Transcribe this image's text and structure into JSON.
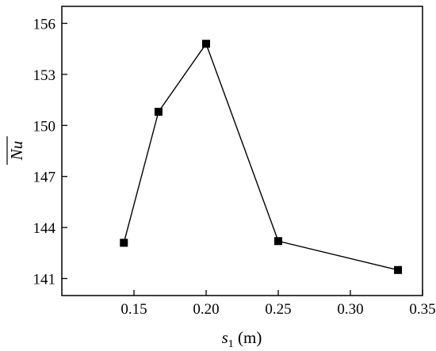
{
  "chart_data": {
    "type": "line",
    "title": "",
    "xlabel": {
      "var": "s",
      "sub": "1",
      "unit": " (m)"
    },
    "ylabel": "Nu",
    "ylabel_overline": true,
    "xlim": [
      0.1,
      0.35
    ],
    "ylim": [
      140,
      157
    ],
    "xticks": [
      0.15,
      0.2,
      0.25,
      0.3,
      0.35
    ],
    "xtick_labels": [
      "0.15",
      "0.20",
      "0.25",
      "0.30",
      "0.35"
    ],
    "yticks": [
      141,
      144,
      147,
      150,
      153,
      156
    ],
    "ytick_labels": [
      "141",
      "144",
      "147",
      "150",
      "153",
      "156"
    ],
    "grid": false,
    "legend": false,
    "series": [
      {
        "marker": "square",
        "color": "#000000",
        "x": [
          0.143,
          0.167,
          0.2,
          0.25,
          0.333
        ],
        "y": [
          143.1,
          150.8,
          154.8,
          143.2,
          141.5
        ]
      }
    ]
  }
}
